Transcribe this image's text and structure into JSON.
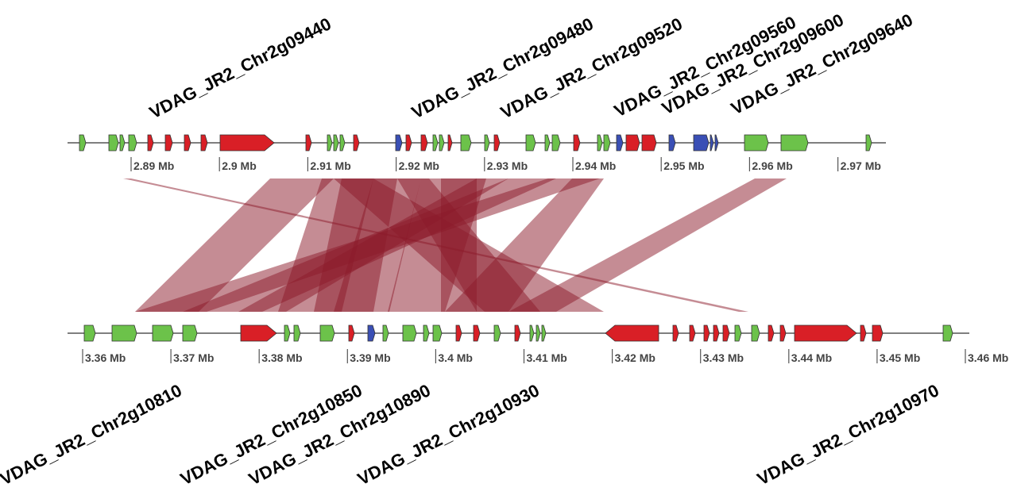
{
  "top_track": {
    "gene_labels": [
      "VDAG_JR2_Chr2g09440",
      "VDAG_JR2_Chr2g09480",
      "VDAG_JR2_Chr2g09520",
      "VDAG_JR2_Chr2g09560",
      "VDAG_JR2_Chr2g09600",
      "VDAG_JR2_Chr2g09640"
    ],
    "ticks": [
      "2.89 Mb",
      "2.9 Mb",
      "2.91 Mb",
      "2.92 Mb",
      "2.93 Mb",
      "2.94 Mb",
      "2.95 Mb",
      "2.96 Mb",
      "2.97 Mb"
    ]
  },
  "bottom_track": {
    "gene_labels": [
      "VDAG_JR2_Chr2g10810",
      "VDAG_JR2_Chr2g10850",
      "VDAG_JR2_Chr2g10890",
      "VDAG_JR2_Chr2g10930",
      "VDAG_JR2_Chr2g10970"
    ],
    "ticks": [
      "3.36 Mb",
      "3.37 Mb",
      "3.38 Mb",
      "3.39 Mb",
      "3.4 Mb",
      "3.41 Mb",
      "3.42 Mb",
      "3.43 Mb",
      "3.44 Mb",
      "3.45 Mb",
      "3.46 Mb"
    ]
  }
}
